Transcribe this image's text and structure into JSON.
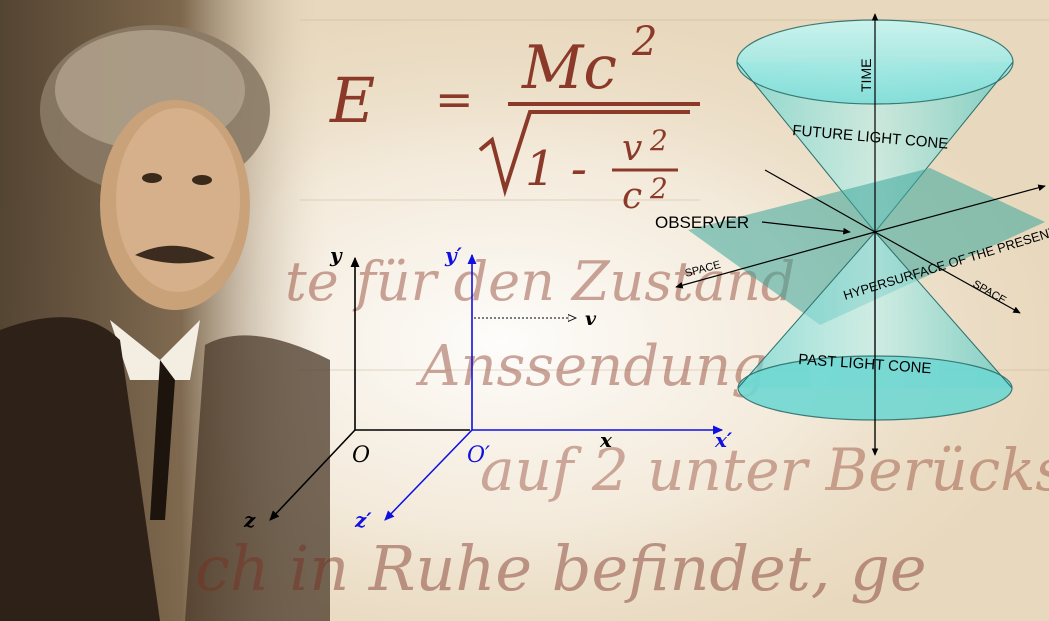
{
  "equation": {
    "lhs": "E",
    "equals": "=",
    "numerator": "Mc",
    "numerator_exp": "2",
    "den_one": "1 -",
    "den_v": "v",
    "den_v_exp": "2",
    "den_c": "c",
    "den_c_exp": "2"
  },
  "handwriting": {
    "line1": "te für den Zustand",
    "line2": "Anssendung",
    "line3": "auf 2 unter Berücks",
    "line4": "ch in Ruhe befindet, ge"
  },
  "axes": {
    "y": "y",
    "y_prime": "y′",
    "x": "x",
    "x_prime": "x′",
    "z": "z",
    "z_prime": "z′",
    "origin": "O",
    "origin_prime": "O′",
    "velocity": "v"
  },
  "light_cone": {
    "time": "TIME",
    "future": "FUTURE LIGHT CONE",
    "past": "PAST LIGHT CONE",
    "observer": "OBSERVER",
    "hypersurface": "HYPERSURFACE OF THE PRESENT",
    "space_left": "SPACE",
    "space_right": "SPACE"
  },
  "colors": {
    "paper": "#efe4d0",
    "ink": "#8b3a2a",
    "blue_frame": "#1010e0",
    "cone": "#7ee0dc",
    "plane": "#3aa59a"
  }
}
